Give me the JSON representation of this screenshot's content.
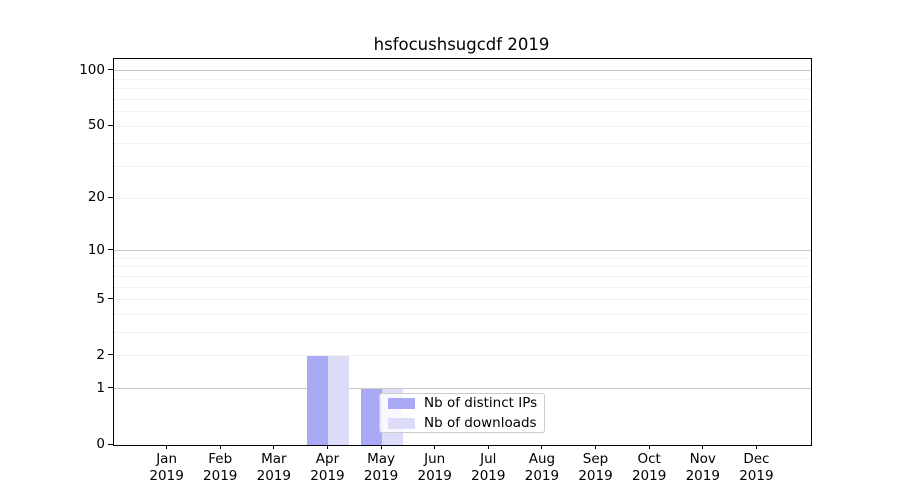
{
  "chart_data": {
    "type": "bar",
    "title": "hsfocushsugcdf 2019",
    "categories": [
      "Jan",
      "Feb",
      "Mar",
      "Apr",
      "May",
      "Jun",
      "Jul",
      "Aug",
      "Sep",
      "Oct",
      "Nov",
      "Dec"
    ],
    "x_year_label": "2019",
    "series": [
      {
        "name": "Nb of distinct IPs",
        "key": "distinct-ips",
        "color": "#a9a9f6",
        "values": [
          0,
          0,
          0,
          2,
          1,
          0,
          0,
          0,
          0,
          0,
          0,
          0
        ]
      },
      {
        "name": "Nb of downloads",
        "key": "downloads",
        "color": "#dcdcf9",
        "values": [
          0,
          0,
          0,
          2,
          1,
          0,
          0,
          0,
          0,
          0,
          0,
          0
        ]
      }
    ],
    "yscale": "log1p",
    "ylim": [
      0,
      116
    ],
    "yticks_labeled": [
      0,
      1,
      2,
      5,
      10,
      20,
      50,
      100
    ],
    "yticks_dark": [
      1,
      10,
      100
    ],
    "yticks_minor": [
      3,
      4,
      6,
      7,
      8,
      9,
      30,
      40,
      60,
      70,
      80,
      90
    ],
    "xlabel": "",
    "ylabel": "",
    "grid": true,
    "legend_position": "lower center",
    "colors": {
      "grid_major": "#c9c9c9",
      "grid_minor": "#f0f0f0",
      "spine": "#000000",
      "background": "#ffffff"
    }
  }
}
